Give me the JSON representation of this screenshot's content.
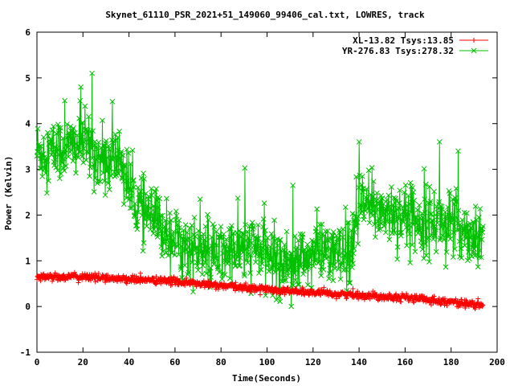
{
  "chart_data": {
    "type": "line",
    "title": "Skynet_61110_PSR_2021+51_149060_99406_cal.txt, LOWRES, track",
    "xlabel": "Time(Seconds)",
    "ylabel": "Power (Kelvin)",
    "xlim": [
      0,
      200
    ],
    "ylim": [
      -1,
      6
    ],
    "x_ticks": [
      "0",
      "20",
      "40",
      "60",
      "80",
      "100",
      "120",
      "140",
      "160",
      "180",
      "200"
    ],
    "y_ticks": [
      "-1",
      "0",
      "1",
      "2",
      "3",
      "4",
      "5",
      "6"
    ],
    "grid": false,
    "legend_position": "top-right",
    "series": [
      {
        "name": "XL-13.82 Tsys:13.85",
        "color": "#ff0000",
        "marker": "plus",
        "x_range": [
          0,
          194
        ],
        "trend_points": [
          [
            0,
            0.65
          ],
          [
            20,
            0.65
          ],
          [
            40,
            0.6
          ],
          [
            60,
            0.55
          ],
          [
            80,
            0.45
          ],
          [
            100,
            0.38
          ],
          [
            120,
            0.3
          ],
          [
            140,
            0.25
          ],
          [
            160,
            0.2
          ],
          [
            180,
            0.1
          ],
          [
            194,
            0.02
          ]
        ],
        "noise_amplitude": 0.04
      },
      {
        "name": "YR-276.83 Tsys:278.32",
        "color": "#00c000",
        "marker": "cross",
        "x_range": [
          0,
          194
        ],
        "trend_points": [
          [
            0,
            3.4
          ],
          [
            10,
            3.4
          ],
          [
            20,
            3.6
          ],
          [
            30,
            3.1
          ],
          [
            36,
            3.3
          ],
          [
            42,
            2.3
          ],
          [
            55,
            1.7
          ],
          [
            65,
            1.3
          ],
          [
            75,
            1.1
          ],
          [
            85,
            1.2
          ],
          [
            95,
            1.3
          ],
          [
            105,
            1.0
          ],
          [
            115,
            1.0
          ],
          [
            125,
            1.3
          ],
          [
            133,
            1.0
          ],
          [
            137,
            1.2
          ],
          [
            140,
            2.2
          ],
          [
            160,
            2.0
          ],
          [
            180,
            1.8
          ],
          [
            194,
            1.5
          ]
        ],
        "noise_amplitude": 0.35,
        "spikes": [
          [
            24,
            5.1
          ],
          [
            19,
            4.8
          ],
          [
            12,
            4.5
          ],
          [
            140,
            3.6
          ],
          [
            175,
            3.6
          ],
          [
            183,
            3.4
          ],
          [
            192,
            1.95
          ]
        ]
      }
    ]
  }
}
